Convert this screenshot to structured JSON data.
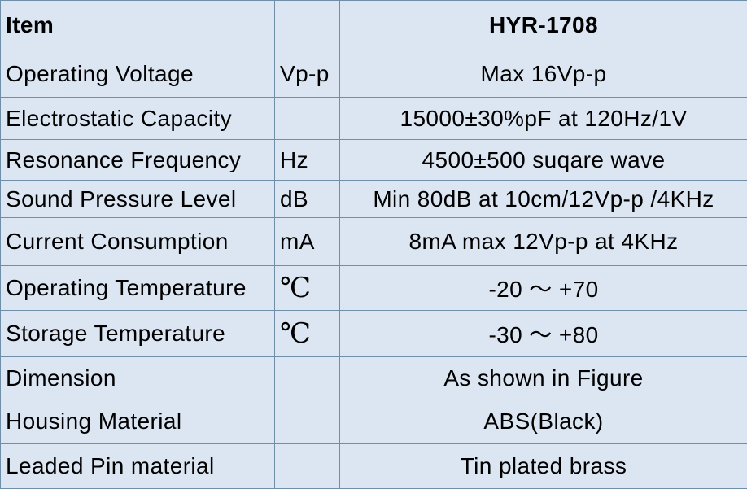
{
  "table": {
    "header": {
      "item": "Item",
      "unit": "",
      "model": "HYR-1708"
    },
    "rows": [
      {
        "item": "Operating Voltage",
        "unit": "Vp-p",
        "value": "Max 16Vp-p"
      },
      {
        "item": "Electrostatic Capacity",
        "unit": "",
        "value": "15000±30%pF at 120Hz/1V"
      },
      {
        "item": "Resonance Frequency",
        "unit": "Hz",
        "value": "4500±500 suqare wave"
      },
      {
        "item": "Sound Pressure Level",
        "unit": "dB",
        "value": "Min 80dB at 10cm/12Vp-p /4KHz"
      },
      {
        "item": "Current Consumption",
        "unit": "mA",
        "value": "8mA max 12Vp-p at 4KHz"
      },
      {
        "item": "Operating Temperature",
        "unit": "℃",
        "value": "-20 ～ +70"
      },
      {
        "item": "Storage Temperature",
        "unit": "℃",
        "value": "-30 ～ +80"
      },
      {
        "item": "Dimension",
        "unit": "",
        "value": "As shown in Figure"
      },
      {
        "item": "Housing Material",
        "unit": "",
        "value": "ABS(Black)"
      },
      {
        "item": "Leaded Pin material",
        "unit": "",
        "value": "Tin plated brass"
      }
    ]
  }
}
